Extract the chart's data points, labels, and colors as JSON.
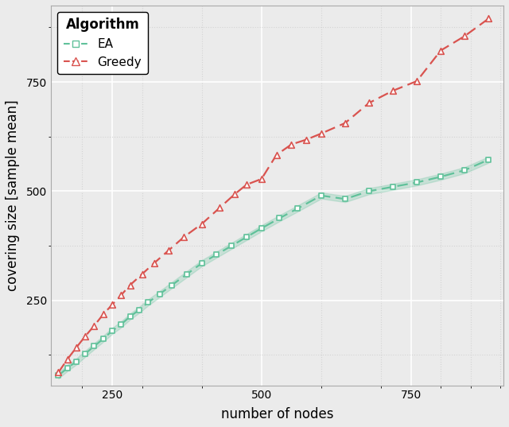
{
  "xlabel": "number of nodes",
  "ylabel": "covering size [sample mean]",
  "xlim": [
    148,
    905
  ],
  "ylim": [
    55,
    925
  ],
  "xticks": [
    250,
    500,
    750
  ],
  "yticks": [
    250,
    500,
    750
  ],
  "background_color": "#ebebeb",
  "grid_major_color": "#ffffff",
  "grid_minor_color": "#d4d4d4",
  "ea_color": "#60c19a",
  "greedy_color": "#d9534f",
  "ea_x": [
    160,
    175,
    190,
    205,
    220,
    235,
    250,
    265,
    280,
    295,
    310,
    330,
    350,
    375,
    400,
    425,
    450,
    475,
    500,
    530,
    560,
    600,
    640,
    680,
    720,
    760,
    800,
    840,
    880
  ],
  "ea_y": [
    78,
    95,
    110,
    128,
    145,
    162,
    180,
    195,
    213,
    228,
    245,
    265,
    285,
    310,
    335,
    355,
    375,
    395,
    415,
    438,
    460,
    490,
    482,
    500,
    510,
    520,
    533,
    548,
    572
  ],
  "greedy_x": [
    160,
    175,
    190,
    205,
    220,
    235,
    250,
    265,
    280,
    300,
    320,
    345,
    370,
    400,
    430,
    455,
    475,
    500,
    525,
    550,
    575,
    600,
    640,
    680,
    720,
    760,
    800,
    840,
    880
  ],
  "greedy_y": [
    85,
    115,
    142,
    168,
    192,
    218,
    240,
    262,
    285,
    310,
    335,
    365,
    395,
    425,
    462,
    493,
    515,
    528,
    583,
    607,
    618,
    632,
    656,
    702,
    730,
    752,
    822,
    855,
    895
  ],
  "legend_title": "Algorithm",
  "legend_ea_label": "EA",
  "legend_greedy_label": "Greedy"
}
